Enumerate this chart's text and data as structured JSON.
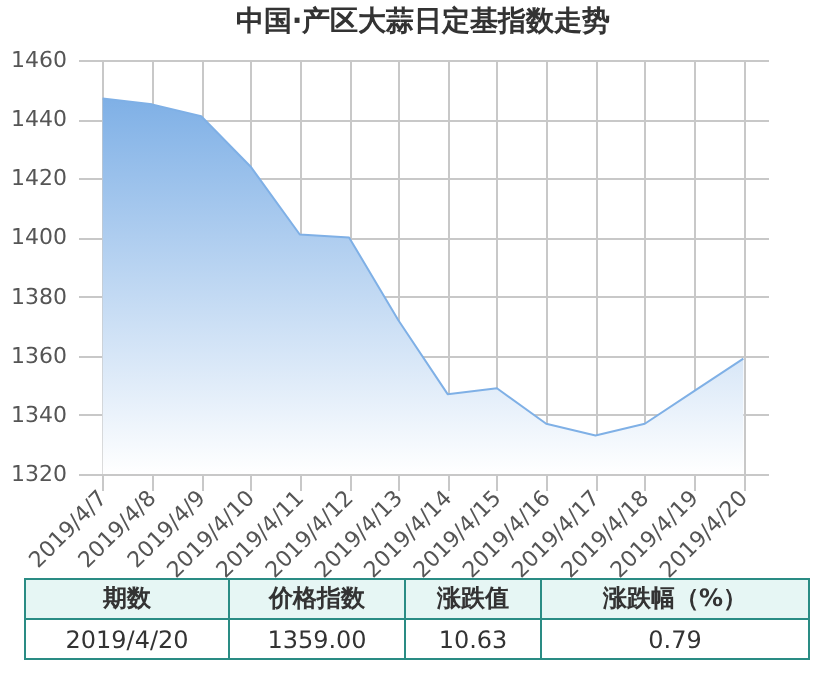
{
  "chart_data": {
    "type": "area",
    "title": "中国·产区大蒜日定基指数走势",
    "categories": [
      "2019/4/7",
      "2019/4/8",
      "2019/4/9",
      "2019/4/10",
      "2019/4/11",
      "2019/4/12",
      "2019/4/13",
      "2019/4/14",
      "2019/4/15",
      "2019/4/16",
      "2019/4/17",
      "2019/4/18",
      "2019/4/19",
      "2019/4/20"
    ],
    "series": [
      {
        "color": "#7fb0e6",
        "values": [
          1447,
          1445,
          1441,
          1424,
          1401,
          1400,
          1372,
          1347,
          1349,
          1337,
          1333,
          1337,
          1348,
          1359
        ]
      }
    ],
    "ylim": [
      1320,
      1460
    ],
    "yticks": [
      1320,
      1340,
      1360,
      1380,
      1400,
      1420,
      1440,
      1460
    ],
    "grid": true,
    "annotations": [
      "期数",
      "价格指数",
      "涨跌值",
      "涨跌幅（%）",
      "2019/4/20",
      "1359.00",
      "10.63",
      "0.79"
    ]
  }
}
